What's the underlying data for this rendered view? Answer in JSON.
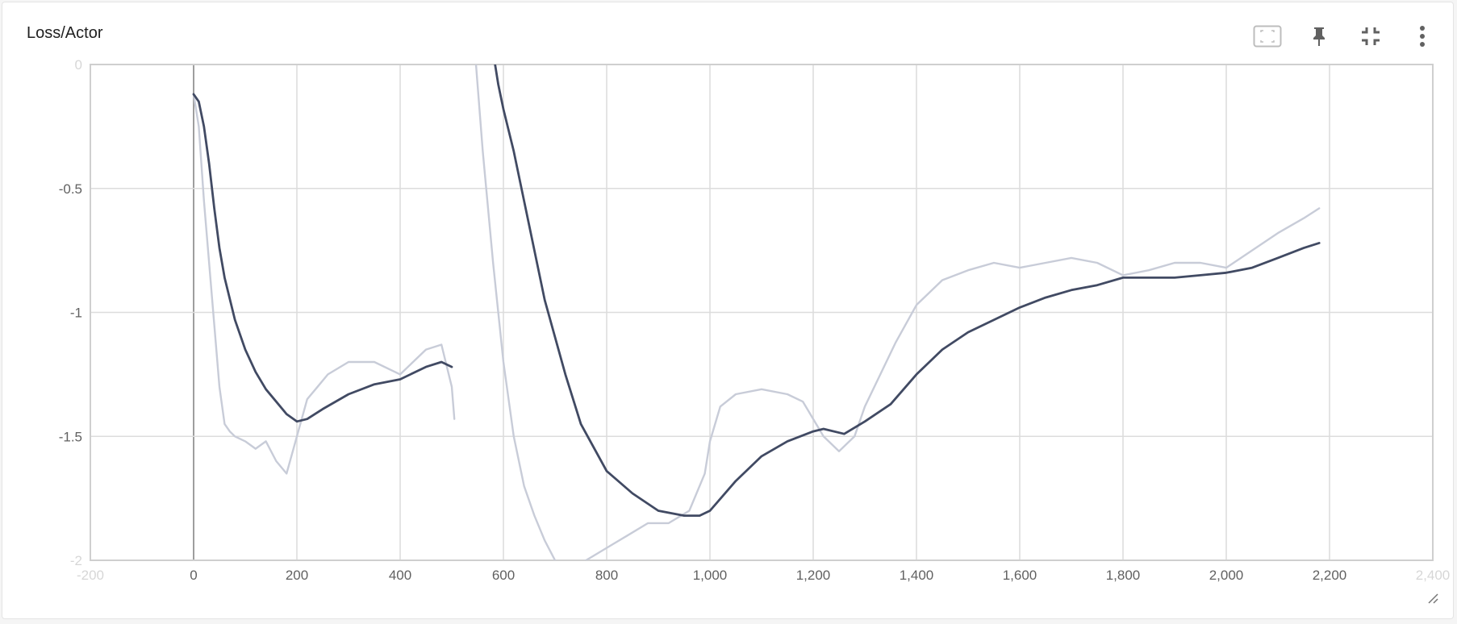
{
  "card": {
    "title": "Loss/Actor"
  },
  "toolbar": {
    "buttons": [
      {
        "name": "fit-domain-button",
        "icon": "fit-screen-icon"
      },
      {
        "name": "pin-button",
        "icon": "pin-icon"
      },
      {
        "name": "collapse-button",
        "icon": "collapse-icon"
      },
      {
        "name": "more-options-button",
        "icon": "more-vert-icon"
      }
    ]
  },
  "colors": {
    "smoothed_line": "#414a63",
    "raw_line": "#c8ccd8",
    "grid": "#dcdcdc",
    "axis_zero": "#9e9e9e",
    "toolbar_icon": "#616161"
  },
  "chart_data": {
    "type": "line",
    "title": "Loss/Actor",
    "xlim": [
      -200,
      2400
    ],
    "ylim": [
      -2,
      0
    ],
    "x_ticks": [
      -200,
      0,
      200,
      400,
      600,
      800,
      1000,
      1200,
      1400,
      1600,
      1800,
      2000,
      2200,
      2400
    ],
    "x_tick_labels": [
      "-200",
      "0",
      "200",
      "400",
      "600",
      "800",
      "1,000",
      "1,200",
      "1,400",
      "1,600",
      "1,800",
      "2,000",
      "2,200",
      "2,400"
    ],
    "y_ticks": [
      0,
      -0.5,
      -1,
      -1.5,
      -2
    ],
    "y_tick_labels": [
      "0",
      "-0.5",
      "-1",
      "-1.5",
      "-2"
    ],
    "grid": true,
    "series": [
      {
        "role": "smoothed",
        "segments": [
          {
            "x": [
              0,
              10,
              20,
              30,
              40,
              50,
              60,
              80,
              100,
              120,
              140,
              160,
              180,
              200,
              220,
              250,
              300,
              350,
              400,
              450,
              480,
              500
            ],
            "y": [
              -0.12,
              -0.15,
              -0.25,
              -0.4,
              -0.58,
              -0.74,
              -0.86,
              -1.03,
              -1.15,
              -1.24,
              -1.31,
              -1.36,
              -1.41,
              -1.44,
              -1.43,
              -1.39,
              -1.33,
              -1.29,
              -1.27,
              -1.22,
              -1.2,
              -1.22
            ]
          },
          {
            "x": [
              580,
              590,
              600,
              620,
              640,
              660,
              680,
              700,
              720,
              750,
              800,
              850,
              900,
              950,
              980,
              1000,
              1050,
              1100,
              1150,
              1200,
              1220,
              1260,
              1300,
              1350,
              1400,
              1450,
              1500,
              1550,
              1600,
              1650,
              1700,
              1750,
              1800,
              1850,
              1900,
              1950,
              2000,
              2050,
              2100,
              2150,
              2180
            ],
            "y": [
              0.05,
              -0.08,
              -0.18,
              -0.35,
              -0.55,
              -0.75,
              -0.95,
              -1.1,
              -1.25,
              -1.45,
              -1.64,
              -1.73,
              -1.8,
              -1.82,
              -1.82,
              -1.8,
              -1.68,
              -1.58,
              -1.52,
              -1.48,
              -1.47,
              -1.49,
              -1.44,
              -1.37,
              -1.25,
              -1.15,
              -1.08,
              -1.03,
              -0.98,
              -0.94,
              -0.91,
              -0.89,
              -0.86,
              -0.86,
              -0.86,
              -0.85,
              -0.84,
              -0.82,
              -0.78,
              -0.74,
              -0.72
            ]
          }
        ]
      },
      {
        "role": "raw",
        "segments": [
          {
            "x": [
              0,
              10,
              20,
              30,
              40,
              50,
              60,
              70,
              80,
              100,
              120,
              140,
              160,
              180,
              200,
              220,
              240,
              260,
              300,
              350,
              400,
              450,
              480,
              500,
              505
            ],
            "y": [
              -0.12,
              -0.25,
              -0.55,
              -0.8,
              -1.05,
              -1.3,
              -1.45,
              -1.48,
              -1.5,
              -1.52,
              -1.55,
              -1.52,
              -1.6,
              -1.65,
              -1.5,
              -1.35,
              -1.3,
              -1.25,
              -1.2,
              -1.2,
              -1.25,
              -1.15,
              -1.13,
              -1.3,
              -1.43
            ]
          },
          {
            "x": [
              545,
              560,
              580,
              600,
              620,
              640,
              660,
              680,
              700,
              720,
              760,
              800,
              840,
              880,
              920,
              960,
              990,
              1000,
              1020,
              1050,
              1100,
              1150,
              1180,
              1200,
              1220,
              1250,
              1280,
              1300,
              1330,
              1360,
              1400,
              1450,
              1500,
              1550,
              1600,
              1650,
              1700,
              1750,
              1800,
              1850,
              1900,
              1950,
              2000,
              2050,
              2100,
              2150,
              2180
            ],
            "y": [
              0.05,
              -0.35,
              -0.8,
              -1.2,
              -1.5,
              -1.7,
              -1.82,
              -1.92,
              -2.0,
              -2.05,
              -2.0,
              -1.95,
              -1.9,
              -1.85,
              -1.85,
              -1.8,
              -1.65,
              -1.52,
              -1.38,
              -1.33,
              -1.31,
              -1.33,
              -1.36,
              -1.43,
              -1.5,
              -1.56,
              -1.5,
              -1.38,
              -1.25,
              -1.12,
              -0.97,
              -0.87,
              -0.83,
              -0.8,
              -0.82,
              -0.8,
              -0.78,
              -0.8,
              -0.85,
              -0.83,
              -0.8,
              -0.8,
              -0.82,
              -0.75,
              -0.68,
              -0.62,
              -0.58
            ]
          }
        ]
      }
    ]
  }
}
